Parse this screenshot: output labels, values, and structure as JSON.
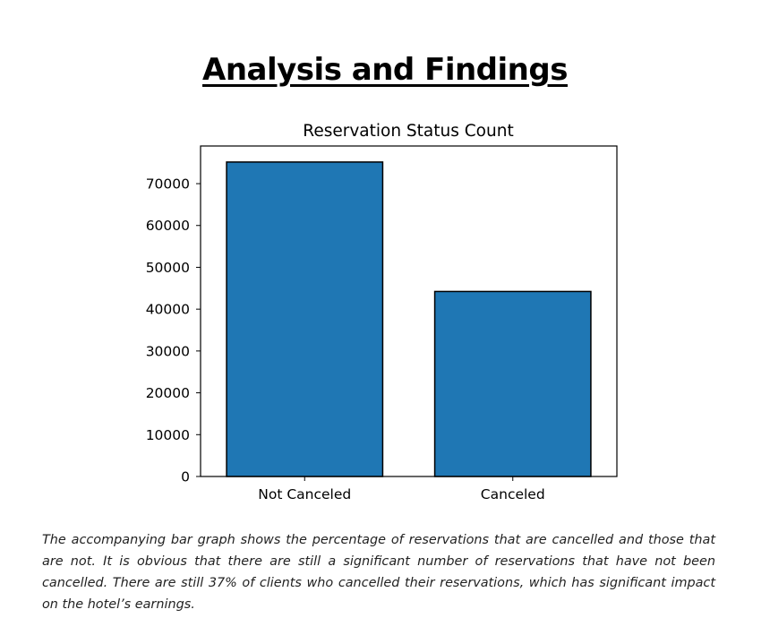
{
  "document": {
    "heading": "Analysis and Findings",
    "caption": "The accompanying bar graph shows the percentage of reservations that are cancelled and those that are not. It is obvious that there are still a significant number of reservations that have not been cancelled. There are still 37% of clients who cancelled their reservations, which has significant impact on the hotel’s earnings."
  },
  "chart_data": {
    "type": "bar",
    "title": "Reservation Status Count",
    "categories": [
      "Not Canceled",
      "Canceled"
    ],
    "values": [
      75166,
      44224
    ],
    "xlabel": "",
    "ylabel": "",
    "ylim": [
      0,
      79000
    ],
    "yticks": [
      0,
      10000,
      20000,
      30000,
      40000,
      50000,
      60000,
      70000
    ],
    "grid": false,
    "legend": "none",
    "colors": {
      "bar_fill": "#1f77b4",
      "bar_edge": "#000000",
      "axes": "#000000"
    }
  }
}
